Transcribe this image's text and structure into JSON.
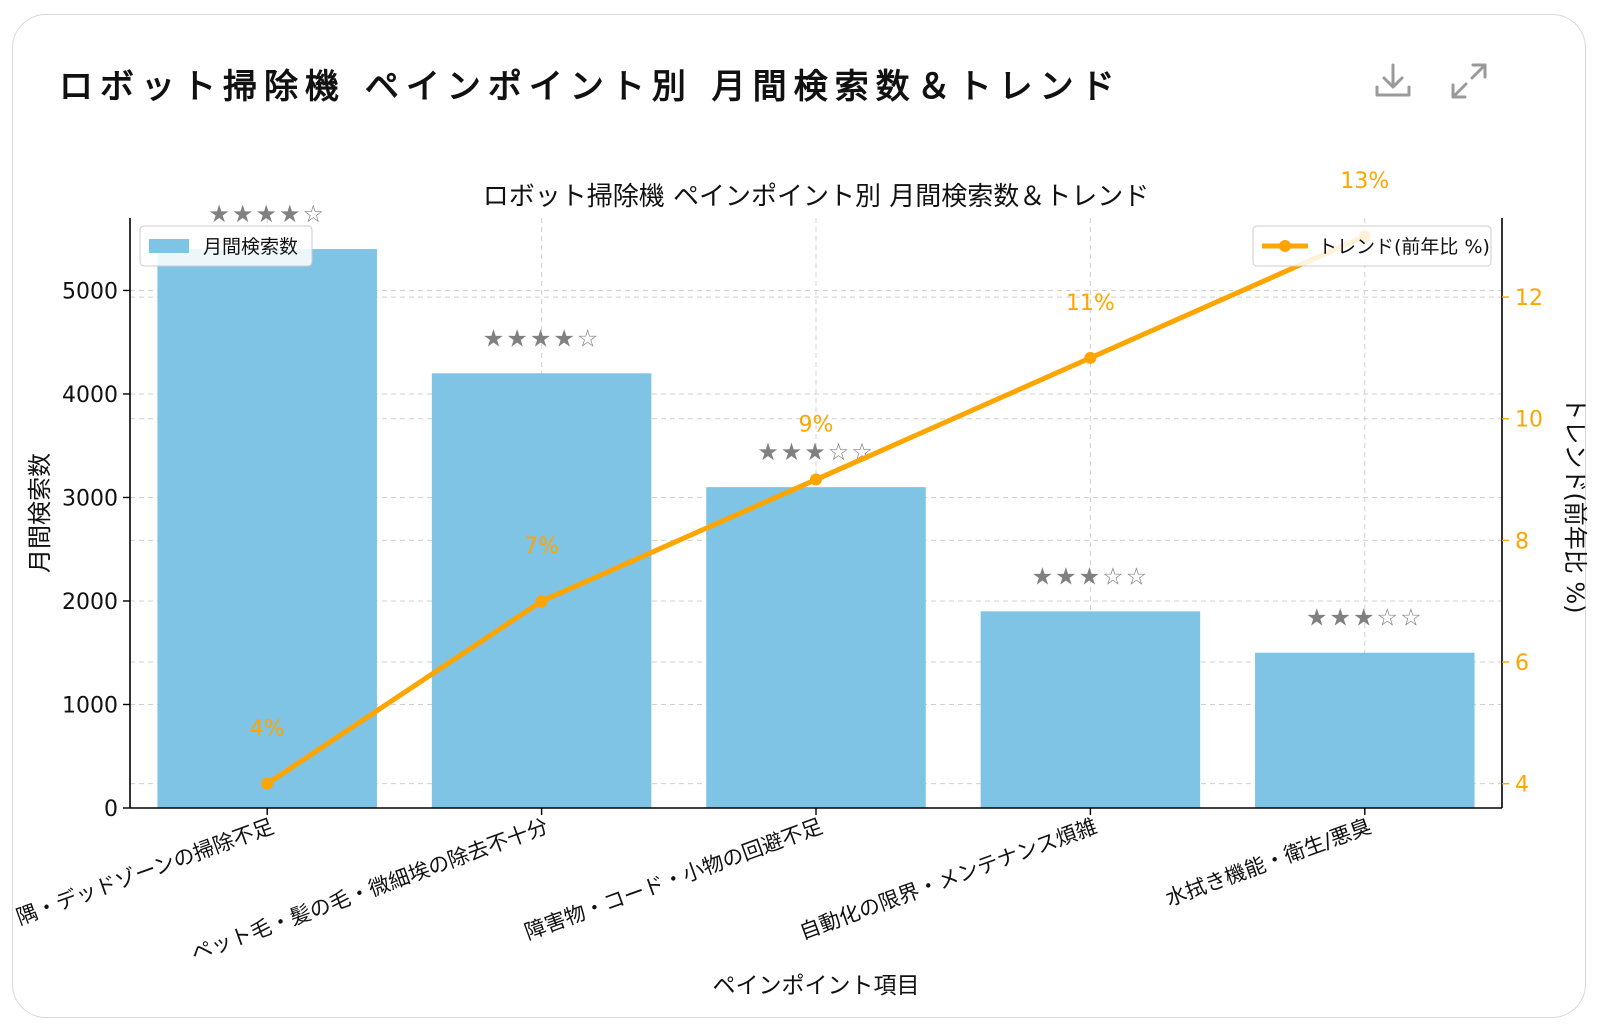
{
  "card": {
    "title": "ロボット掃除機 ペインポイント別 月間検索数＆トレンド",
    "download_icon": "download-icon",
    "expand_icon": "expand-icon"
  },
  "chart_data": {
    "type": "bar",
    "title": "ロボット掃除機 ペインポイント別 月間検索数＆トレンド",
    "xlabel": "ペインポイント項目",
    "ylabel": "月間検索数",
    "y2label": "トレンド(前年比 %)",
    "ylim": [
      0,
      5700
    ],
    "y2lim": [
      3.6,
      13.3
    ],
    "yticks": [
      0,
      1000,
      2000,
      3000,
      4000,
      5000
    ],
    "y2ticks": [
      4,
      6,
      8,
      10,
      12
    ],
    "grid": true,
    "categories": [
      "隅・デッドゾーンの掃除不足",
      "ペット毛・髪の毛・微細埃の除去不十分",
      "障害物・コード・小物の回避不足",
      "自動化の限界・メンテナンス煩雑",
      "水拭き機能・衛生/悪臭"
    ],
    "series": [
      {
        "name": "月間検索数",
        "type": "bar",
        "axis": "left",
        "color": "#7fc4e4",
        "values": [
          5400,
          4200,
          3100,
          1900,
          1500
        ]
      },
      {
        "name": "トレンド(前年比 %)",
        "type": "line",
        "axis": "right",
        "color": "#ffa500",
        "values": [
          4,
          7,
          9,
          11,
          13
        ]
      }
    ],
    "trend_labels": [
      "4%",
      "7%",
      "9%",
      "11%",
      "13%"
    ],
    "star_ratings": [
      "★★★★☆",
      "★★★★☆",
      "★★★☆☆",
      "★★★☆☆",
      "★★★☆☆"
    ],
    "legend_left": "top-left",
    "legend_right": "top-right"
  }
}
